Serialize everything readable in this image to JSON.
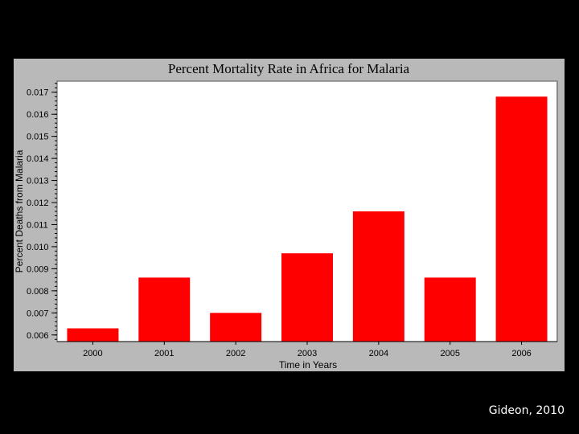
{
  "slide": {
    "citation": "Gideon, 2010",
    "background_color": "#000000",
    "panel_color": "#b9b9b9",
    "plot_color": "#ffffff",
    "bar_color": "#ff0000"
  },
  "chart_data": {
    "type": "bar",
    "title": "Percent Mortality Rate in Africa for Malaria",
    "xlabel": "Time in Years",
    "ylabel": "Percent Deaths from Malaria",
    "categories": [
      "2000",
      "2001",
      "2002",
      "2003",
      "2004",
      "2005",
      "2006"
    ],
    "values": [
      0.0063,
      0.0086,
      0.007,
      0.0097,
      0.0116,
      0.0086,
      0.0168
    ],
    "ylim": [
      0.0057,
      0.0175
    ],
    "yticks": [
      "0.006",
      "0.007",
      "0.008",
      "0.009",
      "0.010",
      "0.011",
      "0.012",
      "0.013",
      "0.014",
      "0.015",
      "0.016",
      "0.017"
    ],
    "grid": false,
    "legend": "none"
  }
}
